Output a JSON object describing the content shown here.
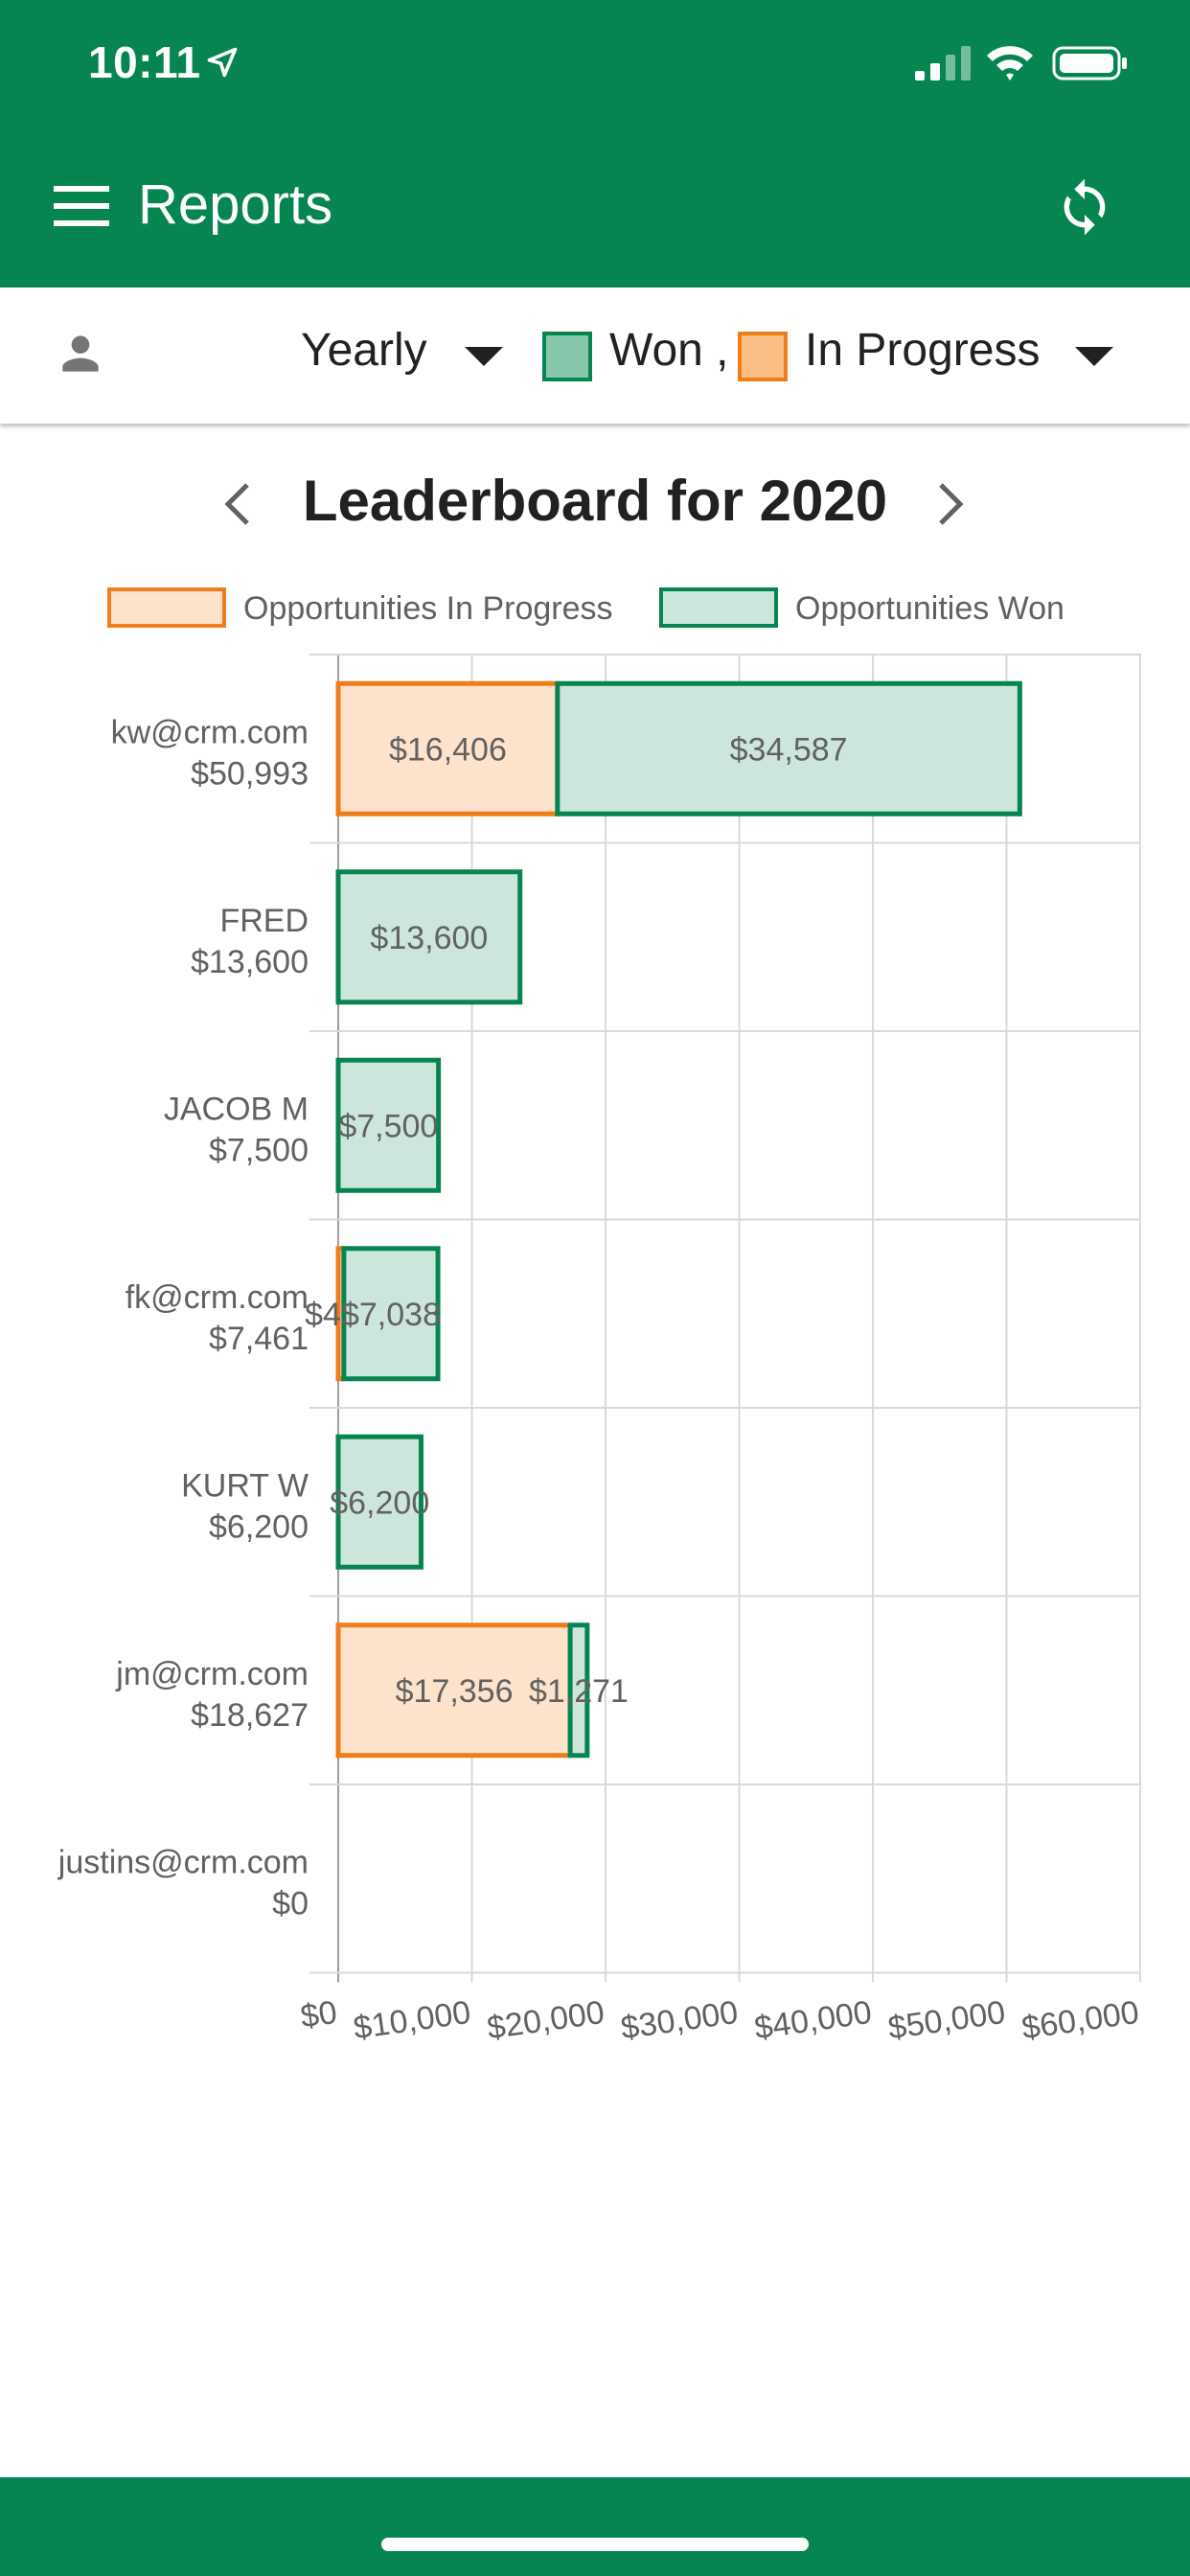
{
  "status_bar": {
    "time": "10:11"
  },
  "app_bar": {
    "title": "Reports",
    "menu_icon": "menu-icon",
    "sync_icon": "sync-icon"
  },
  "filters": {
    "period": "Yearly",
    "won_label": "Won ,",
    "in_progress_label": "In Progress",
    "colors": {
      "won_fill": "#86c7ab",
      "won_border": "#068551",
      "progress_fill": "#fbbf85",
      "progress_border": "#ef7d19"
    }
  },
  "leaderboard": {
    "title": "Leaderboard for 2020"
  },
  "chart_data": {
    "type": "bar",
    "orientation": "horizontal",
    "stacked": true,
    "legend": {
      "placement": "top",
      "items": [
        "Opportunities In Progress",
        "Opportunities Won"
      ]
    },
    "categories": [
      {
        "name": "kw@crm.com",
        "total": "$50,993"
      },
      {
        "name": "FRED",
        "total": "$13,600"
      },
      {
        "name": "JACOB M",
        "total": "$7,500"
      },
      {
        "name": "fk@crm.com",
        "total": "$7,461"
      },
      {
        "name": "KURT W",
        "total": "$6,200"
      },
      {
        "name": "jm@crm.com",
        "total": "$18,627"
      },
      {
        "name": "justins@crm.com",
        "total": "$0"
      }
    ],
    "series": [
      {
        "name": "Opportunities In Progress",
        "fill": "#fde3cc",
        "stroke": "#ef7d19",
        "values": [
          16406,
          0,
          0,
          423,
          0,
          17356,
          0
        ],
        "labels": [
          "$16,406",
          "",
          "",
          "$423",
          "",
          "$17,356",
          ""
        ]
      },
      {
        "name": "Opportunities Won",
        "fill": "#cde6dc",
        "stroke": "#068551",
        "values": [
          34587,
          13600,
          7500,
          7038,
          6200,
          1271,
          0
        ],
        "labels": [
          "$34,587",
          "$13,600",
          "$7,500",
          "$7,038",
          "$6,200",
          "$1,271",
          ""
        ]
      }
    ],
    "x_ticks": [
      "$0",
      "$10,000",
      "$20,000",
      "$30,000",
      "$40,000",
      "$50,000",
      "$60,000"
    ],
    "xlim": [
      0,
      60000
    ],
    "grid": true
  }
}
